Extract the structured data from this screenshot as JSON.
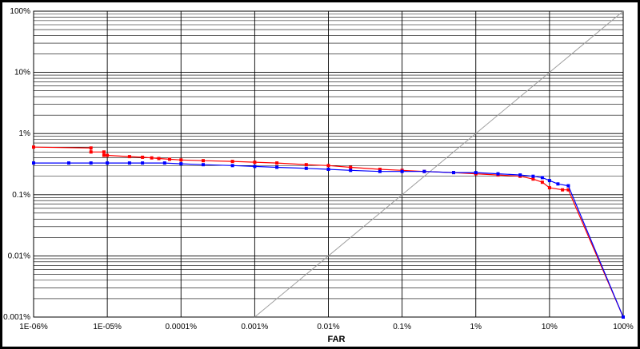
{
  "chart_data": {
    "type": "line",
    "xlabel": "FAR",
    "ylabel": "",
    "x_scale": "log",
    "y_scale": "log",
    "xlim": [
      1e-06,
      100
    ],
    "ylim": [
      0.001,
      100
    ],
    "grid": true,
    "x_tick_labels": [
      "1E-06%",
      "1E-05%",
      "0.0001%",
      "0.001%",
      "0.01%",
      "0.1%",
      "1%",
      "10%",
      "100%"
    ],
    "x_tick_values": [
      1e-06,
      1e-05,
      0.0001,
      0.001,
      0.01,
      0.1,
      1,
      10,
      100
    ],
    "y_tick_labels": [
      "0.001%",
      "0.01%",
      "0.1%",
      "1%",
      "10%",
      "100%"
    ],
    "y_tick_values": [
      0.001,
      0.01,
      0.1,
      1,
      10,
      100
    ],
    "diagonal": {
      "points": [
        [
          0.001,
          0.001
        ],
        [
          100,
          100
        ]
      ],
      "color": "#a0a0a0"
    },
    "series": [
      {
        "color": "#ff0000",
        "points": [
          [
            1e-06,
            0.6
          ],
          [
            6e-06,
            0.58
          ],
          [
            6e-06,
            0.5
          ],
          [
            9e-06,
            0.5
          ],
          [
            9e-06,
            0.44
          ],
          [
            1e-05,
            0.44
          ],
          [
            2e-05,
            0.42
          ],
          [
            3e-05,
            0.41
          ],
          [
            4e-05,
            0.4
          ],
          [
            5e-05,
            0.39
          ],
          [
            7e-05,
            0.38
          ],
          [
            0.0001,
            0.37
          ],
          [
            0.0002,
            0.36
          ],
          [
            0.0005,
            0.35
          ],
          [
            0.001,
            0.34
          ],
          [
            0.002,
            0.33
          ],
          [
            0.005,
            0.31
          ],
          [
            0.01,
            0.3
          ],
          [
            0.02,
            0.28
          ],
          [
            0.05,
            0.26
          ],
          [
            0.1,
            0.25
          ],
          [
            0.2,
            0.24
          ],
          [
            0.5,
            0.23
          ],
          [
            1,
            0.22
          ],
          [
            2,
            0.21
          ],
          [
            4,
            0.2
          ],
          [
            6,
            0.18
          ],
          [
            8,
            0.16
          ],
          [
            10,
            0.13
          ],
          [
            15,
            0.12
          ],
          [
            18,
            0.12
          ],
          [
            100,
            0.001
          ]
        ]
      },
      {
        "color": "#0000ff",
        "points": [
          [
            1e-06,
            0.33
          ],
          [
            3e-06,
            0.33
          ],
          [
            6e-06,
            0.33
          ],
          [
            1e-05,
            0.33
          ],
          [
            2e-05,
            0.33
          ],
          [
            3e-05,
            0.33
          ],
          [
            6e-05,
            0.33
          ],
          [
            0.0001,
            0.32
          ],
          [
            0.0002,
            0.31
          ],
          [
            0.0005,
            0.3
          ],
          [
            0.001,
            0.29
          ],
          [
            0.002,
            0.28
          ],
          [
            0.005,
            0.27
          ],
          [
            0.01,
            0.26
          ],
          [
            0.02,
            0.25
          ],
          [
            0.05,
            0.24
          ],
          [
            0.1,
            0.24
          ],
          [
            0.2,
            0.24
          ],
          [
            0.5,
            0.23
          ],
          [
            1,
            0.23
          ],
          [
            2,
            0.22
          ],
          [
            4,
            0.21
          ],
          [
            6,
            0.2
          ],
          [
            8,
            0.19
          ],
          [
            10,
            0.17
          ],
          [
            13,
            0.15
          ],
          [
            18,
            0.14
          ],
          [
            100,
            0.001
          ]
        ]
      }
    ]
  }
}
